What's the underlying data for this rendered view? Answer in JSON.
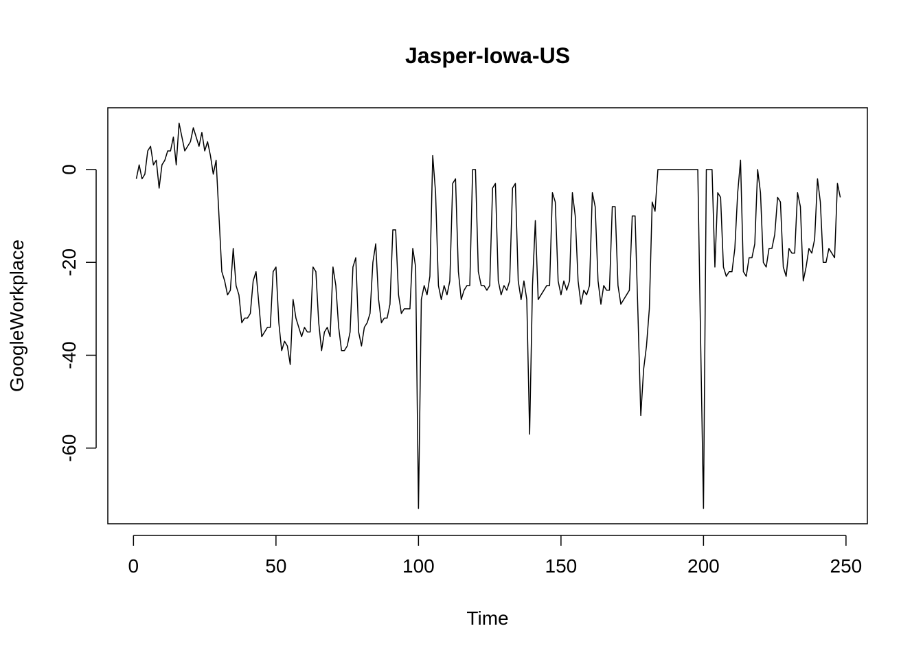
{
  "chart_data": {
    "type": "line",
    "title": "Jasper-Iowa-US",
    "xlabel": "Time",
    "ylabel": "GoogleWorkplace",
    "xlim": [
      -9,
      257.5
    ],
    "ylim": [
      -76.3,
      13.3
    ],
    "xticks": [
      0,
      50,
      100,
      150,
      200,
      250
    ],
    "xtick_labels": [
      "0",
      "50",
      "100",
      "150",
      "200",
      "250"
    ],
    "yticks": [
      0,
      -20,
      -40,
      -60
    ],
    "ytick_labels": [
      "0",
      "-20",
      "-40",
      "-60"
    ],
    "grid": false,
    "legend": "none",
    "line_color": "#000000",
    "series": [
      {
        "x": [
          1,
          2,
          3,
          4,
          5,
          6,
          7,
          8,
          9,
          10,
          11,
          12,
          13,
          14,
          15,
          16,
          17,
          18,
          19,
          20,
          21,
          22,
          23,
          24,
          25,
          26,
          27,
          28,
          29,
          30,
          31,
          32,
          33,
          34,
          35,
          36,
          37,
          38,
          39,
          40,
          41,
          42,
          43,
          44,
          45,
          46,
          47,
          48,
          49,
          50,
          51,
          52,
          53,
          54,
          55,
          56,
          57,
          58,
          59,
          60,
          61,
          62,
          63,
          64,
          65,
          66,
          67,
          68,
          69,
          70,
          71,
          72,
          73,
          74,
          75,
          76,
          77,
          78,
          79,
          80,
          81,
          82,
          83,
          84,
          85,
          86,
          87,
          88,
          89,
          90,
          91,
          92,
          93,
          94,
          95,
          96,
          97,
          98,
          99,
          100,
          101,
          102,
          103,
          104,
          105,
          106,
          107,
          108,
          109,
          110,
          111,
          112,
          113,
          114,
          115,
          116,
          117,
          118,
          119,
          120,
          121,
          122,
          123,
          124,
          125,
          126,
          127,
          128,
          129,
          130,
          131,
          132,
          133,
          134,
          135,
          136,
          137,
          138,
          139,
          140,
          141,
          142,
          143,
          144,
          145,
          146,
          147,
          148,
          149,
          150,
          151,
          152,
          153,
          154,
          155,
          156,
          157,
          158,
          159,
          160,
          161,
          162,
          163,
          164,
          165,
          166,
          167,
          168,
          169,
          170,
          171,
          172,
          173,
          174,
          175,
          176,
          177,
          178,
          179,
          180,
          181,
          182,
          183,
          184,
          185,
          186,
          187,
          188,
          189,
          190,
          191,
          192,
          193,
          194,
          195,
          196,
          197,
          198,
          199,
          200,
          201,
          202,
          203,
          204,
          205,
          206,
          207,
          208,
          209,
          210,
          211,
          212,
          213,
          214,
          215,
          216,
          217,
          218,
          219,
          220,
          221,
          222,
          223,
          224,
          225,
          226,
          227,
          228,
          229,
          230,
          231,
          232,
          233,
          234,
          235,
          236,
          237,
          238,
          239,
          240,
          241,
          242,
          243,
          244,
          245,
          246,
          247,
          248
        ],
        "values": [
          -2,
          1,
          -2,
          -1,
          4,
          5,
          1,
          2,
          -4,
          1,
          2,
          4,
          4,
          7,
          1,
          10,
          7,
          4,
          5,
          6,
          9,
          7,
          5,
          8,
          4,
          6,
          3,
          -1,
          2,
          -10,
          -22,
          -24,
          -27,
          -26,
          -17,
          -25,
          -27,
          -33,
          -32,
          -32,
          -31,
          -24,
          -22,
          -29,
          -36,
          -35,
          -34,
          -34,
          -22,
          -21,
          -33,
          -39,
          -37,
          -38,
          -42,
          -28,
          -32,
          -34,
          -36,
          -34,
          -35,
          -35,
          -21,
          -22,
          -33,
          -39,
          -35,
          -34,
          -36,
          -21,
          -25,
          -34,
          -39,
          -39,
          -38,
          -35,
          -21,
          -19,
          -35,
          -38,
          -34,
          -33,
          -31,
          -20,
          -16,
          -28,
          -33,
          -32,
          -32,
          -29,
          -13,
          -13,
          -27,
          -31,
          -30,
          -30,
          -30,
          -17,
          -21,
          -73,
          -28,
          -25,
          -27,
          -23,
          3,
          -5,
          -25,
          -28,
          -25,
          -27,
          -24,
          -3,
          -2,
          -22,
          -28,
          -26,
          -25,
          -25,
          0,
          0,
          -22,
          -25,
          -25,
          -26,
          -25,
          -4,
          -3,
          -24,
          -27,
          -25,
          -26,
          -24,
          -4,
          -3,
          -24,
          -28,
          -24,
          -28,
          -57,
          -25,
          -11,
          -28,
          -27,
          -26,
          -25,
          -25,
          -5,
          -7,
          -24,
          -27,
          -24,
          -26,
          -24,
          -5,
          -10,
          -24,
          -29,
          -26,
          -27,
          -25,
          -5,
          -8,
          -24,
          -29,
          -25,
          -26,
          -26,
          -8,
          -8,
          -25,
          -29,
          -28,
          -27,
          -26,
          -10,
          -10,
          -31,
          -53,
          -43,
          -38,
          -30,
          -7,
          -9,
          0,
          0,
          0,
          0,
          0,
          0,
          0,
          0,
          0,
          0,
          0,
          0,
          0,
          0,
          0,
          -37,
          -73,
          0,
          0,
          0,
          -21,
          -5,
          -6,
          -21,
          -23,
          -22,
          -22,
          -17,
          -5,
          2,
          -22,
          -23,
          -19,
          -19,
          -16,
          0,
          -5,
          -20,
          -21,
          -17,
          -17,
          -14,
          -6,
          -7,
          -21,
          -23,
          -17,
          -18,
          -18,
          -5,
          -8,
          -24,
          -21,
          -17,
          -18,
          -15,
          -2,
          -7,
          -20,
          -20,
          -17,
          -18,
          -19,
          -3,
          -6
        ]
      }
    ]
  }
}
